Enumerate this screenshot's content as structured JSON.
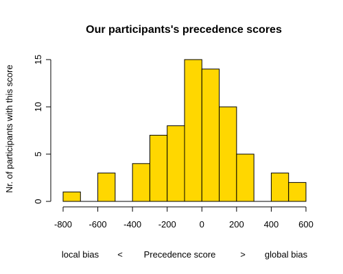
{
  "chart_data": {
    "type": "bar",
    "title": "Our participants's precedence scores",
    "ylabel": "Nr. of participants with this score",
    "xlabel_parts": [
      "local bias",
      "<",
      "Precedence score",
      ">",
      "global bias"
    ],
    "bar_color": "#FFD700",
    "bins": [
      {
        "start": -800,
        "end": -700,
        "value": 1
      },
      {
        "start": -700,
        "end": -600,
        "value": 0
      },
      {
        "start": -600,
        "end": -500,
        "value": 3
      },
      {
        "start": -500,
        "end": -400,
        "value": 0
      },
      {
        "start": -400,
        "end": -300,
        "value": 4
      },
      {
        "start": -300,
        "end": -200,
        "value": 7
      },
      {
        "start": -200,
        "end": -100,
        "value": 8
      },
      {
        "start": -100,
        "end": 0,
        "value": 15
      },
      {
        "start": 0,
        "end": 100,
        "value": 14
      },
      {
        "start": 100,
        "end": 200,
        "value": 10
      },
      {
        "start": 200,
        "end": 300,
        "value": 5
      },
      {
        "start": 300,
        "end": 400,
        "value": 0
      },
      {
        "start": 400,
        "end": 500,
        "value": 3
      },
      {
        "start": 500,
        "end": 600,
        "value": 2
      }
    ],
    "xlim": [
      -800,
      600
    ],
    "ylim": [
      0,
      15
    ],
    "xticks": [
      -800,
      -600,
      -400,
      -200,
      0,
      200,
      400,
      600
    ],
    "yticks": [
      0,
      5,
      10,
      15
    ],
    "grid": false,
    "legend": "none"
  }
}
